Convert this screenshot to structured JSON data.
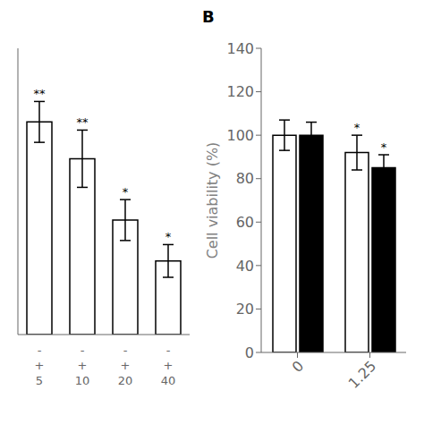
{
  "chart_data": [
    {
      "type": "bar",
      "categories": [
        [
          "-",
          "+",
          "5"
        ],
        [
          "-",
          "+",
          "10"
        ],
        [
          "-",
          "+",
          "20"
        ],
        [
          "-",
          "+",
          "40"
        ]
      ],
      "values": [
        52,
        43,
        28,
        18
      ],
      "errors": [
        5,
        7,
        5,
        4
      ],
      "significance": [
        "**",
        "**",
        "*",
        "*"
      ],
      "color": "#ffffff",
      "ylim": [
        0,
        70
      ],
      "tick_labels": "x"
    },
    {
      "type": "bar",
      "title": "B",
      "categories": [
        "0",
        "1.25"
      ],
      "series": [
        {
          "color": "#ffffff",
          "values": [
            100,
            92
          ],
          "errors": [
            7,
            8
          ],
          "significance": [
            null,
            "*"
          ]
        },
        {
          "color": "#000000",
          "values": [
            100,
            85
          ],
          "errors": [
            6,
            6
          ],
          "significance": [
            null,
            "*"
          ]
        }
      ],
      "ylabel": "Cell viability (%)",
      "ylim": [
        0,
        140
      ],
      "yticks": [
        0,
        20,
        40,
        60,
        80,
        100,
        120,
        140
      ]
    }
  ]
}
